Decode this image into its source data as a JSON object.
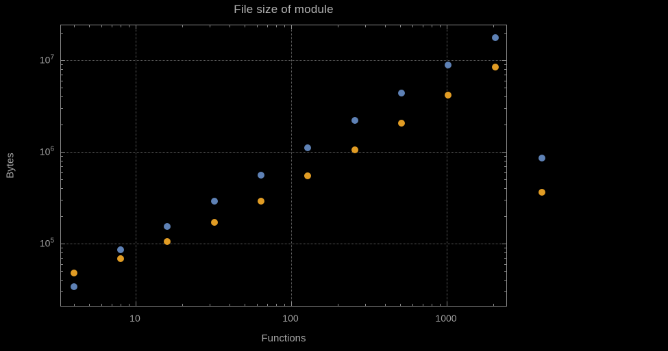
{
  "chart_data": {
    "type": "scatter",
    "title": "File size of module",
    "xlabel": "Functions",
    "ylabel": "Bytes",
    "x_scale": "log",
    "y_scale": "log",
    "grid": "dotted-major",
    "legend_position": "none",
    "xlim": [
      3.3,
      2470
    ],
    "ylim": [
      20000,
      24000000
    ],
    "x_tick_values": [
      10,
      100,
      1000
    ],
    "x_tick_labels": [
      "10",
      "100",
      "1000"
    ],
    "y_tick_values": [
      100000,
      1000000,
      10000000
    ],
    "y_tick_labels": [
      "10^5",
      "10^6",
      "10^7"
    ],
    "series": [
      {
        "name": "blue",
        "color": "#5e81b5",
        "points": [
          [
            4,
            34000
          ],
          [
            8,
            85000
          ],
          [
            16,
            155000
          ],
          [
            32,
            290000
          ],
          [
            64,
            560000
          ],
          [
            128,
            1100000
          ],
          [
            256,
            2200000
          ],
          [
            512,
            4400000
          ],
          [
            1024,
            8800000
          ],
          [
            2048,
            17500000
          ]
        ]
      },
      {
        "name": "orange",
        "color": "#e19c24",
        "points": [
          [
            4,
            48000
          ],
          [
            8,
            68000
          ],
          [
            16,
            105000
          ],
          [
            32,
            170000
          ],
          [
            64,
            290000
          ],
          [
            128,
            550000
          ],
          [
            256,
            1050000
          ],
          [
            512,
            2050000
          ],
          [
            1024,
            4200000
          ],
          [
            2048,
            8500000
          ]
        ]
      }
    ],
    "outside_markers": [
      {
        "series": "blue",
        "color": "#5e81b5",
        "point": [
          4096,
          850000
        ]
      },
      {
        "series": "orange",
        "color": "#e19c24",
        "point": [
          4096,
          360000
        ]
      }
    ],
    "colors": {
      "background": "#000000",
      "frame": "#8c8c8c",
      "grid": "#646464",
      "labels": "#a6a6a6",
      "series_blue": "#5e81b5",
      "series_orange": "#e19c24"
    }
  }
}
